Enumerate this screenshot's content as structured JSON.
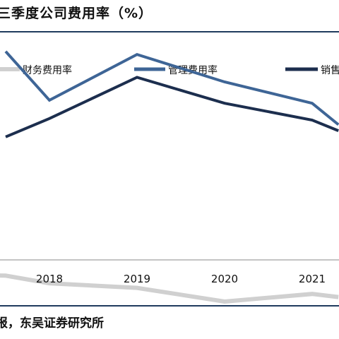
{
  "title": "三季度公司费用率（%）",
  "source": "报，东吴证券研究所",
  "chart_data": {
    "type": "line",
    "title": "三季度公司费用率（%）",
    "xlabel": "",
    "ylabel": "",
    "x_visible_ticks": [
      "2018",
      "2019",
      "2020",
      "2021"
    ],
    "ylim": [
      -2,
      18
    ],
    "grid": false,
    "legend_position": "top",
    "x_range": [
      2016.4,
      2021.3
    ],
    "series": [
      {
        "name": "财务费用率",
        "color": "#d0d0d0",
        "x": [
          2016.5,
          2017.5,
          2018.0,
          2019.0,
          2020.0,
          2021.0,
          2021.3
        ],
        "values": [
          0.4,
          0.3,
          -0.2,
          -0.5,
          -1.4,
          -0.9,
          -1.1
        ]
      },
      {
        "name": "管理费用率",
        "color": "#3e6596",
        "x": [
          2017.5,
          2018.0,
          2019.0,
          2020.0,
          2021.0,
          2021.3
        ],
        "values": [
          15.0,
          11.8,
          14.8,
          13.0,
          11.6,
          10.2
        ]
      },
      {
        "name": "销售费用率",
        "color": "#1c2e4e",
        "x": [
          2017.5,
          2018.0,
          2019.0,
          2020.0,
          2021.0,
          2021.3
        ],
        "values": [
          9.4,
          10.6,
          13.3,
          11.6,
          10.5,
          9.8
        ]
      }
    ]
  }
}
